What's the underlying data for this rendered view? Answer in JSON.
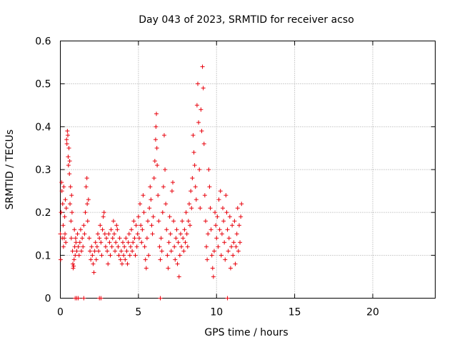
{
  "chart_data": {
    "type": "scatter",
    "title": "Day 043 of 2023, SRMTID for receiver acso",
    "xlabel": "GPS time / hours",
    "ylabel": "SRMTID / TECUs",
    "xlim": [
      0,
      24
    ],
    "ylim": [
      0,
      0.6
    ],
    "xticks": [
      0,
      5,
      10,
      15,
      20
    ],
    "xtick_labels": [
      "0",
      "5",
      "10",
      "15",
      "20"
    ],
    "yticks": [
      0,
      0.1,
      0.2,
      0.3,
      0.4,
      0.5,
      0.6
    ],
    "ytick_labels": [
      "0",
      "0.1",
      "0.2",
      "0.3",
      "0.4",
      "0.5",
      "0.6"
    ],
    "grid": true,
    "marker": "+",
    "color": "#e8000b",
    "series": [
      {
        "name": "SRMTID",
        "points": [
          [
            0.0,
            0.15
          ],
          [
            0.02,
            0.09
          ],
          [
            0.05,
            0.2
          ],
          [
            0.08,
            0.27
          ],
          [
            0.1,
            0.25
          ],
          [
            0.12,
            0.14
          ],
          [
            0.15,
            0.22
          ],
          [
            0.18,
            0.17
          ],
          [
            0.2,
            0.12
          ],
          [
            0.22,
            0.26
          ],
          [
            0.25,
            0.14
          ],
          [
            0.28,
            0.19
          ],
          [
            0.3,
            0.15
          ],
          [
            0.32,
            0.23
          ],
          [
            0.35,
            0.13
          ],
          [
            0.38,
            0.21
          ],
          [
            0.4,
            0.37
          ],
          [
            0.42,
            0.36
          ],
          [
            0.45,
            0.39
          ],
          [
            0.48,
            0.38
          ],
          [
            0.5,
            0.33
          ],
          [
            0.52,
            0.31
          ],
          [
            0.55,
            0.35
          ],
          [
            0.58,
            0.29
          ],
          [
            0.6,
            0.32
          ],
          [
            0.62,
            0.22
          ],
          [
            0.65,
            0.26
          ],
          [
            0.68,
            0.18
          ],
          [
            0.7,
            0.14
          ],
          [
            0.72,
            0.24
          ],
          [
            0.75,
            0.2
          ],
          [
            0.78,
            0.11
          ],
          [
            0.8,
            0.08
          ],
          [
            0.82,
            0.07
          ],
          [
            0.85,
            0.075
          ],
          [
            0.88,
            0.09
          ],
          [
            0.9,
            0.16
          ],
          [
            0.92,
            0.12
          ],
          [
            0.95,
            0.1
          ],
          [
            0.98,
            0.14
          ],
          [
            1.0,
            0.13
          ],
          [
            1.05,
            0.11
          ],
          [
            1.1,
            0.15
          ],
          [
            1.15,
            0.12
          ],
          [
            1.2,
            0.1
          ],
          [
            1.25,
            0.13
          ],
          [
            1.3,
            0.16
          ],
          [
            1.35,
            0.11
          ],
          [
            1.4,
            0.14
          ],
          [
            1.45,
            0.12
          ],
          [
            1.5,
            0.17
          ],
          [
            1.55,
            0.15
          ],
          [
            1.6,
            0.2
          ],
          [
            1.65,
            0.26
          ],
          [
            1.7,
            0.28
          ],
          [
            1.72,
            0.22
          ],
          [
            1.75,
            0.18
          ],
          [
            1.8,
            0.23
          ],
          [
            1.85,
            0.14
          ],
          [
            1.9,
            0.11
          ],
          [
            1.95,
            0.09
          ],
          [
            2.0,
            0.12
          ],
          [
            2.05,
            0.1
          ],
          [
            2.1,
            0.08
          ],
          [
            2.15,
            0.06
          ],
          [
            2.2,
            0.11
          ],
          [
            2.25,
            0.13
          ],
          [
            2.3,
            0.09
          ],
          [
            2.35,
            0.12
          ],
          [
            2.4,
            0.15
          ],
          [
            2.45,
            0.11
          ],
          [
            2.5,
            0.14
          ],
          [
            2.55,
            0.17
          ],
          [
            2.6,
            0.13
          ],
          [
            2.65,
            0.1
          ],
          [
            2.7,
            0.16
          ],
          [
            2.75,
            0.19
          ],
          [
            2.8,
            0.2
          ],
          [
            2.85,
            0.15
          ],
          [
            2.9,
            0.12
          ],
          [
            2.95,
            0.14
          ],
          [
            3.0,
            0.11
          ],
          [
            3.05,
            0.08
          ],
          [
            3.1,
            0.15
          ],
          [
            3.15,
            0.13
          ],
          [
            3.2,
            0.1
          ],
          [
            3.25,
            0.16
          ],
          [
            3.3,
            0.12
          ],
          [
            3.35,
            0.14
          ],
          [
            3.4,
            0.18
          ],
          [
            3.45,
            0.15
          ],
          [
            3.5,
            0.11
          ],
          [
            3.55,
            0.13
          ],
          [
            3.6,
            0.17
          ],
          [
            3.65,
            0.16
          ],
          [
            3.7,
            0.12
          ],
          [
            3.75,
            0.1
          ],
          [
            3.8,
            0.14
          ],
          [
            3.85,
            0.09
          ],
          [
            3.9,
            0.11
          ],
          [
            3.95,
            0.08
          ],
          [
            4.0,
            0.13
          ],
          [
            4.05,
            0.1
          ],
          [
            4.1,
            0.12
          ],
          [
            4.15,
            0.09
          ],
          [
            4.2,
            0.14
          ],
          [
            4.25,
            0.11
          ],
          [
            4.3,
            0.08
          ],
          [
            4.35,
            0.13
          ],
          [
            4.4,
            0.15
          ],
          [
            4.45,
            0.1
          ],
          [
            4.5,
            0.12
          ],
          [
            4.55,
            0.16
          ],
          [
            4.6,
            0.11
          ],
          [
            4.65,
            0.13
          ],
          [
            4.7,
            0.18
          ],
          [
            4.75,
            0.14
          ],
          [
            4.8,
            0.1
          ],
          [
            4.85,
            0.17
          ],
          [
            4.9,
            0.12
          ],
          [
            4.95,
            0.15
          ],
          [
            5.0,
            0.19
          ],
          [
            5.05,
            0.14
          ],
          [
            5.1,
            0.22
          ],
          [
            5.15,
            0.17
          ],
          [
            5.2,
            0.13
          ],
          [
            5.25,
            0.16
          ],
          [
            5.3,
            0.24
          ],
          [
            5.35,
            0.2
          ],
          [
            5.4,
            0.12
          ],
          [
            5.45,
            0.09
          ],
          [
            5.5,
            0.07
          ],
          [
            5.55,
            0.14
          ],
          [
            5.6,
            0.18
          ],
          [
            5.65,
            0.1
          ],
          [
            5.7,
            0.21
          ],
          [
            5.75,
            0.26
          ],
          [
            5.8,
            0.23
          ],
          [
            5.85,
            0.17
          ],
          [
            5.9,
            0.15
          ],
          [
            5.95,
            0.19
          ],
          [
            6.0,
            0.28
          ],
          [
            6.05,
            0.32
          ],
          [
            6.1,
            0.37
          ],
          [
            6.12,
            0.4
          ],
          [
            6.15,
            0.43
          ],
          [
            6.18,
            0.35
          ],
          [
            6.2,
            0.31
          ],
          [
            6.25,
            0.24
          ],
          [
            6.3,
            0.18
          ],
          [
            6.35,
            0.12
          ],
          [
            6.4,
            0.09
          ],
          [
            6.45,
            0.14
          ],
          [
            6.5,
            0.11
          ],
          [
            6.55,
            0.2
          ],
          [
            6.6,
            0.26
          ],
          [
            6.65,
            0.38
          ],
          [
            6.7,
            0.3
          ],
          [
            6.75,
            0.22
          ],
          [
            6.8,
            0.16
          ],
          [
            6.85,
            0.1
          ],
          [
            6.9,
            0.07
          ],
          [
            6.95,
            0.13
          ],
          [
            7.0,
            0.19
          ],
          [
            7.05,
            0.15
          ],
          [
            7.1,
            0.11
          ],
          [
            7.15,
            0.25
          ],
          [
            7.2,
            0.27
          ],
          [
            7.25,
            0.18
          ],
          [
            7.3,
            0.12
          ],
          [
            7.35,
            0.09
          ],
          [
            7.4,
            0.14
          ],
          [
            7.45,
            0.16
          ],
          [
            7.5,
            0.08
          ],
          [
            7.55,
            0.13
          ],
          [
            7.6,
            0.05
          ],
          [
            7.65,
            0.1
          ],
          [
            7.7,
            0.15
          ],
          [
            7.75,
            0.12
          ],
          [
            7.8,
            0.18
          ],
          [
            7.85,
            0.14
          ],
          [
            7.9,
            0.11
          ],
          [
            7.95,
            0.16
          ],
          [
            8.0,
            0.13
          ],
          [
            8.05,
            0.2
          ],
          [
            8.1,
            0.15
          ],
          [
            8.15,
            0.12
          ],
          [
            8.2,
            0.18
          ],
          [
            8.25,
            0.22
          ],
          [
            8.3,
            0.17
          ],
          [
            8.35,
            0.25
          ],
          [
            8.4,
            0.21
          ],
          [
            8.45,
            0.28
          ],
          [
            8.5,
            0.38
          ],
          [
            8.55,
            0.34
          ],
          [
            8.6,
            0.31
          ],
          [
            8.65,
            0.26
          ],
          [
            8.7,
            0.23
          ],
          [
            8.75,
            0.45
          ],
          [
            8.8,
            0.5
          ],
          [
            8.85,
            0.41
          ],
          [
            8.9,
            0.3
          ],
          [
            8.95,
            0.21
          ],
          [
            9.0,
            0.44
          ],
          [
            9.05,
            0.39
          ],
          [
            9.1,
            0.54
          ],
          [
            9.15,
            0.49
          ],
          [
            9.2,
            0.36
          ],
          [
            9.25,
            0.24
          ],
          [
            9.3,
            0.18
          ],
          [
            9.35,
            0.12
          ],
          [
            9.4,
            0.09
          ],
          [
            9.45,
            0.15
          ],
          [
            9.5,
            0.3
          ],
          [
            9.55,
            0.26
          ],
          [
            9.6,
            0.21
          ],
          [
            9.65,
            0.16
          ],
          [
            9.7,
            0.1
          ],
          [
            9.75,
            0.07
          ],
          [
            9.8,
            0.05
          ],
          [
            9.85,
            0.11
          ],
          [
            9.9,
            0.2
          ],
          [
            9.95,
            0.17
          ],
          [
            10.0,
            0.14
          ],
          [
            10.05,
            0.19
          ],
          [
            10.1,
            0.12
          ],
          [
            10.15,
            0.23
          ],
          [
            10.2,
            0.16
          ],
          [
            10.25,
            0.25
          ],
          [
            10.3,
            0.1
          ],
          [
            10.35,
            0.15
          ],
          [
            10.4,
            0.21
          ],
          [
            10.45,
            0.18
          ],
          [
            10.5,
            0.13
          ],
          [
            10.55,
            0.09
          ],
          [
            10.6,
            0.24
          ],
          [
            10.65,
            0.2
          ],
          [
            10.7,
            0.16
          ],
          [
            10.75,
            0.11
          ],
          [
            10.8,
            0.14
          ],
          [
            10.85,
            0.19
          ],
          [
            10.9,
            0.07
          ],
          [
            10.95,
            0.12
          ],
          [
            11.0,
            0.17
          ],
          [
            11.05,
            0.1
          ],
          [
            11.1,
            0.13
          ],
          [
            11.15,
            0.18
          ],
          [
            11.2,
            0.08
          ],
          [
            11.25,
            0.12
          ],
          [
            11.3,
            0.15
          ],
          [
            11.35,
            0.21
          ],
          [
            11.4,
            0.11
          ],
          [
            11.45,
            0.17
          ],
          [
            11.5,
            0.13
          ],
          [
            11.55,
            0.19
          ],
          [
            11.6,
            0.22
          ],
          [
            0.95,
            0.0
          ],
          [
            1.05,
            0.0
          ],
          [
            1.15,
            0.0
          ],
          [
            1.5,
            0.0
          ],
          [
            2.5,
            0.0
          ],
          [
            2.6,
            0.0
          ],
          [
            6.4,
            0.0
          ],
          [
            10.7,
            0.0
          ]
        ]
      }
    ]
  }
}
